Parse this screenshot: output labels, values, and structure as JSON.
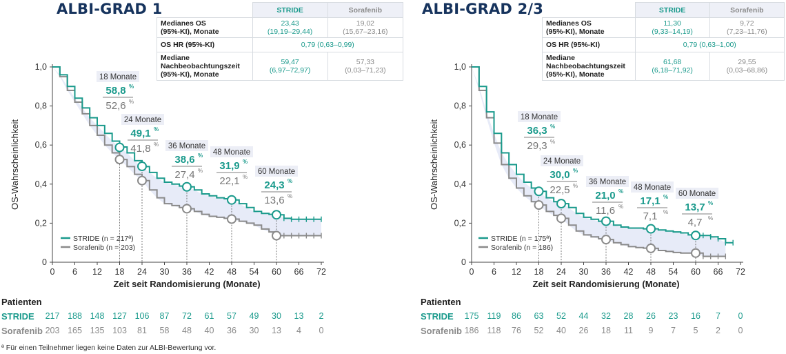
{
  "colors": {
    "stride": "#1a9a8c",
    "sorafenib": "#8a8a8a",
    "title": "#16335d",
    "band": "#e7ebf8"
  },
  "panels": [
    {
      "title": "ALBI-GRAD 1",
      "table": {
        "col_stride": "STRIDE",
        "col_sorafenib": "Sorafenib",
        "rows": [
          {
            "label": "Medianes OS\n(95%-KI), Monate",
            "stride": "23,43\n(19,19–29,44)",
            "sorafenib": "19,02\n(15,67–23,16)"
          },
          {
            "label": "OS HR (95%-KI)",
            "merged": "0,79 (0,63–0,99)"
          },
          {
            "label": "Mediane\nNachbeobachtungszeit\n(95%-KI), Monate",
            "stride": "59,47\n(6,97–72,97)",
            "sorafenib": "57,33\n(0,03–71,23)"
          }
        ]
      },
      "risk": {
        "header": "Patienten",
        "stride_label": "STRIDE",
        "sorafenib_label": "Sorafenib",
        "stride": [
          "217",
          "188",
          "148",
          "127",
          "106",
          "87",
          "72",
          "61",
          "57",
          "49",
          "30",
          "13",
          "2"
        ],
        "sorafenib": [
          "203",
          "165",
          "135",
          "103",
          "81",
          "58",
          "48",
          "40",
          "36",
          "30",
          "13",
          "4",
          "0"
        ]
      },
      "legend": {
        "stride": "STRIDE (n = 217ª)",
        "sorafenib": "Sorafenib (n = 203)"
      },
      "annotations": [
        {
          "label": "18 Monate",
          "stride": "58,8%",
          "sorafenib": "52,6%"
        },
        {
          "label": "24 Monate",
          "stride": "49,1%",
          "sorafenib": "41,8%"
        },
        {
          "label": "36 Monate",
          "stride": "38,6%",
          "sorafenib": "27,4%"
        },
        {
          "label": "48 Monate",
          "stride": "31,9%",
          "sorafenib": "22,1%"
        },
        {
          "label": "60 Monate",
          "stride": "24,3%",
          "sorafenib": "13,6%"
        }
      ]
    },
    {
      "title": "ALBI-GRAD 2/3",
      "table": {
        "col_stride": "STRIDE",
        "col_sorafenib": "Sorafenib",
        "rows": [
          {
            "label": "Medianes OS\n(95%-KI), Monate",
            "stride": "11,30\n(9,33–14,19)",
            "sorafenib": "9,72\n(7,23–11,76)"
          },
          {
            "label": "OS HR (95%-KI)",
            "merged": "0,79 (0,63–1,00)"
          },
          {
            "label": "Mediane\nNachbeobachtungszeit\n(95%-KI), Monate",
            "stride": "61,68\n(6,18–71,92)",
            "sorafenib": "29,55\n(0,03–68,86)"
          }
        ]
      },
      "risk": {
        "header": "Patienten",
        "stride_label": "STRIDE",
        "sorafenib_label": "Sorafenib",
        "stride": [
          "175",
          "119",
          "86",
          "63",
          "52",
          "44",
          "32",
          "28",
          "26",
          "23",
          "16",
          "7",
          "0"
        ],
        "sorafenib": [
          "186",
          "118",
          "76",
          "52",
          "40",
          "26",
          "18",
          "11",
          "9",
          "7",
          "5",
          "2",
          "0"
        ]
      },
      "legend": {
        "stride": "STRIDE (n = 175ª)",
        "sorafenib": "Sorafenib (n = 186)"
      },
      "annotations": [
        {
          "label": "18 Monate",
          "stride": "36,3%",
          "sorafenib": "29,3%"
        },
        {
          "label": "24 Monate",
          "stride": "30,0%",
          "sorafenib": "22,5%"
        },
        {
          "label": "36 Monate",
          "stride": "21,0%",
          "sorafenib": "11,6%"
        },
        {
          "label": "48 Monate",
          "stride": "17,1%",
          "sorafenib": "7,1%"
        },
        {
          "label": "60 Monate",
          "stride": "13,7%",
          "sorafenib": "4,7%"
        }
      ]
    }
  ],
  "footnote": "ª Für einen Teilnehmer liegen keine Daten zur ALBI-Bewertung vor.",
  "chart_data": [
    {
      "type": "line",
      "title": "ALBI-GRAD 1",
      "xlabel": "Zeit seit Randomisierung (Monate)",
      "ylabel": "OS-Wahrscheinlichkeit",
      "xlim": [
        0,
        72
      ],
      "ylim": [
        0,
        1
      ],
      "xticks": [
        "0",
        "6",
        "12",
        "18",
        "24",
        "30",
        "36",
        "42",
        "48",
        "54",
        "60",
        "66",
        "72"
      ],
      "yticks": [
        "0",
        "0,2",
        "0,4",
        "0,6",
        "0,8",
        "1,0"
      ],
      "legend_position": "bottom-left",
      "series": [
        {
          "name": "STRIDE (n = 217ª)",
          "x": [
            0,
            2,
            4,
            6,
            8,
            10,
            12,
            14,
            16,
            18,
            20,
            22,
            24,
            26,
            28,
            30,
            32,
            34,
            36,
            38,
            40,
            42,
            44,
            46,
            48,
            50,
            52,
            54,
            56,
            58,
            60,
            62,
            64,
            66,
            68,
            70,
            72
          ],
          "y": [
            1.0,
            0.96,
            0.9,
            0.84,
            0.79,
            0.74,
            0.7,
            0.66,
            0.62,
            0.59,
            0.56,
            0.52,
            0.49,
            0.46,
            0.43,
            0.41,
            0.4,
            0.39,
            0.386,
            0.37,
            0.35,
            0.34,
            0.33,
            0.325,
            0.319,
            0.3,
            0.28,
            0.26,
            0.25,
            0.245,
            0.243,
            0.225,
            0.22,
            0.22,
            0.22,
            0.22,
            0.22
          ]
        },
        {
          "name": "Sorafenib (n = 203)",
          "x": [
            0,
            2,
            4,
            6,
            8,
            10,
            12,
            14,
            16,
            18,
            20,
            22,
            24,
            26,
            28,
            30,
            32,
            34,
            36,
            38,
            40,
            42,
            44,
            46,
            48,
            50,
            52,
            54,
            56,
            58,
            60,
            62,
            64,
            66,
            68,
            70,
            72
          ],
          "y": [
            1.0,
            0.95,
            0.88,
            0.82,
            0.76,
            0.7,
            0.65,
            0.6,
            0.56,
            0.526,
            0.49,
            0.45,
            0.418,
            0.37,
            0.33,
            0.3,
            0.29,
            0.28,
            0.274,
            0.26,
            0.245,
            0.235,
            0.23,
            0.225,
            0.221,
            0.21,
            0.2,
            0.19,
            0.17,
            0.155,
            0.136,
            0.136,
            0.136,
            0.136,
            0.136,
            0.136,
            0.136
          ]
        }
      ],
      "annotations": [
        {
          "x": 18,
          "stride": 0.588,
          "sorafenib": 0.526
        },
        {
          "x": 24,
          "stride": 0.491,
          "sorafenib": 0.418
        },
        {
          "x": 36,
          "stride": 0.386,
          "sorafenib": 0.274
        },
        {
          "x": 48,
          "stride": 0.319,
          "sorafenib": 0.221
        },
        {
          "x": 60,
          "stride": 0.243,
          "sorafenib": 0.136
        }
      ]
    },
    {
      "type": "line",
      "title": "ALBI-GRAD 2/3",
      "xlabel": "Zeit seit Randomisierung (Monate)",
      "ylabel": "OS-Wahrscheinlichkeit",
      "xlim": [
        0,
        72
      ],
      "ylim": [
        0,
        1
      ],
      "xticks": [
        "0",
        "6",
        "12",
        "18",
        "24",
        "30",
        "36",
        "42",
        "48",
        "54",
        "60",
        "66",
        "72"
      ],
      "yticks": [
        "0",
        "0,2",
        "0,4",
        "0,6",
        "0,8",
        "1,0"
      ],
      "legend_position": "bottom-left",
      "series": [
        {
          "name": "STRIDE (n = 175ª)",
          "x": [
            0,
            2,
            4,
            6,
            8,
            10,
            12,
            14,
            16,
            18,
            20,
            22,
            24,
            26,
            28,
            30,
            32,
            34,
            36,
            38,
            40,
            42,
            44,
            46,
            48,
            50,
            52,
            54,
            56,
            58,
            60,
            62,
            64,
            66,
            68,
            70
          ],
          "y": [
            1.0,
            0.9,
            0.77,
            0.66,
            0.56,
            0.5,
            0.45,
            0.41,
            0.38,
            0.363,
            0.33,
            0.31,
            0.3,
            0.28,
            0.25,
            0.23,
            0.22,
            0.21,
            0.21,
            0.19,
            0.18,
            0.175,
            0.175,
            0.171,
            0.171,
            0.165,
            0.16,
            0.155,
            0.15,
            0.14,
            0.137,
            0.137,
            0.13,
            0.12,
            0.1,
            0.1
          ]
        },
        {
          "name": "Sorafenib (n = 186)",
          "x": [
            0,
            2,
            4,
            6,
            8,
            10,
            12,
            14,
            16,
            18,
            20,
            22,
            24,
            26,
            28,
            30,
            32,
            34,
            36,
            38,
            40,
            42,
            44,
            46,
            48,
            50,
            52,
            54,
            56,
            58,
            60,
            62,
            64,
            66,
            68
          ],
          "y": [
            1.0,
            0.88,
            0.74,
            0.61,
            0.5,
            0.43,
            0.38,
            0.34,
            0.31,
            0.293,
            0.26,
            0.24,
            0.225,
            0.19,
            0.16,
            0.14,
            0.13,
            0.12,
            0.116,
            0.1,
            0.09,
            0.08,
            0.075,
            0.072,
            0.071,
            0.06,
            0.055,
            0.05,
            0.047,
            0.047,
            0.047,
            0.03,
            0.03,
            0.03,
            0.03
          ]
        }
      ],
      "annotations": [
        {
          "x": 18,
          "stride": 0.363,
          "sorafenib": 0.293
        },
        {
          "x": 24,
          "stride": 0.3,
          "sorafenib": 0.225
        },
        {
          "x": 36,
          "stride": 0.21,
          "sorafenib": 0.116
        },
        {
          "x": 48,
          "stride": 0.171,
          "sorafenib": 0.071
        },
        {
          "x": 60,
          "stride": 0.137,
          "sorafenib": 0.047
        }
      ]
    }
  ]
}
